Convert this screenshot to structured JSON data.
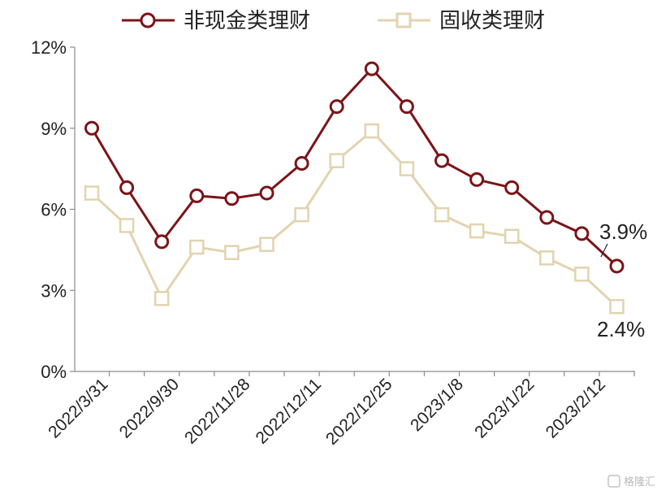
{
  "chart_data": {
    "type": "line",
    "title": "",
    "xlabel": "",
    "ylabel": "",
    "ylim": [
      0,
      12
    ],
    "y_ticks": [
      "0%",
      "3%",
      "6%",
      "9%",
      "12%"
    ],
    "x_tick_labels": [
      "2022/3/31",
      "2022/9/30",
      "2022/11/28",
      "2022/12/11",
      "2022/12/25",
      "2023/1/8",
      "2023/1/22",
      "2023/2/12"
    ],
    "series": [
      {
        "name": "非现金类理财",
        "color": "#7b1418",
        "marker": "circle",
        "values": [
          9.0,
          6.8,
          4.8,
          6.5,
          6.4,
          6.6,
          7.7,
          9.8,
          11.2,
          9.8,
          7.8,
          7.1,
          6.8,
          5.7,
          5.1,
          3.9
        ]
      },
      {
        "name": "固收类理财",
        "color": "#e2d3b0",
        "marker": "square",
        "values": [
          6.6,
          5.4,
          2.7,
          4.6,
          4.4,
          4.7,
          5.8,
          7.8,
          8.9,
          7.5,
          5.8,
          5.2,
          5.0,
          4.2,
          3.6,
          2.4
        ]
      }
    ],
    "annotations": [
      "3.9%",
      "2.4%"
    ],
    "grid": false,
    "legend": "top"
  },
  "watermark": "格隆汇"
}
